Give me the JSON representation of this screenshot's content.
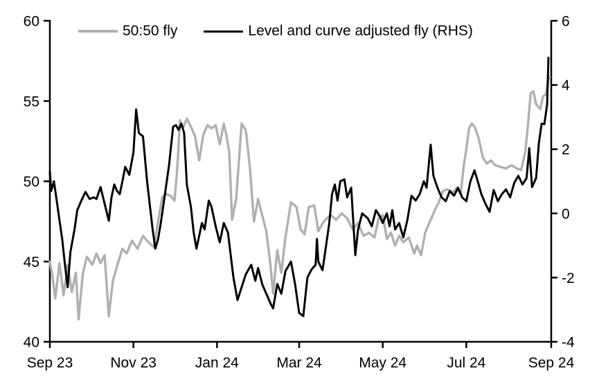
{
  "chart_data": {
    "type": "line",
    "title": "",
    "legend": {
      "position": "top",
      "items": [
        {
          "label": "50:50 fly",
          "color": "#b0b0b0"
        },
        {
          "label": "Level and curve adjusted fly (RHS)",
          "color": "#000000"
        }
      ]
    },
    "x_axis": {
      "tick_labels": [
        "Sep 23",
        "Nov 23",
        "Jan 24",
        "Mar 24",
        "May 24",
        "Jul 24",
        "Sep 24"
      ],
      "tick_positions_days": [
        0,
        61,
        122,
        182,
        243,
        304,
        366
      ],
      "range_days": [
        0,
        366
      ],
      "note": "x expressed as days since first tick (Sep 2023)"
    },
    "left_axis": {
      "ticks": [
        60,
        55,
        50,
        45,
        40
      ],
      "range": [
        40,
        60
      ],
      "applies_to": "50:50 fly"
    },
    "right_axis": {
      "ticks": [
        6,
        4,
        2,
        0,
        -2,
        -4
      ],
      "range": [
        -4,
        6
      ],
      "applies_to": "Level and curve adjusted fly (RHS)"
    },
    "grid": "off",
    "axis_color": "#000000",
    "series": [
      {
        "name": "50:50 fly",
        "axis": "left",
        "color": "#b0b0b0",
        "stroke_width": 3.4,
        "points": [
          [
            0,
            45.0
          ],
          [
            2,
            44.0
          ],
          [
            4,
            42.7
          ],
          [
            7,
            44.9
          ],
          [
            10,
            42.9
          ],
          [
            13,
            44.8
          ],
          [
            16,
            43.1
          ],
          [
            19,
            44.3
          ],
          [
            21,
            41.4
          ],
          [
            24,
            44.2
          ],
          [
            27,
            45.3
          ],
          [
            31,
            44.8
          ],
          [
            34,
            45.5
          ],
          [
            37,
            44.9
          ],
          [
            40,
            45.4
          ],
          [
            43,
            41.6
          ],
          [
            46,
            43.8
          ],
          [
            49,
            44.7
          ],
          [
            53,
            45.8
          ],
          [
            56,
            45.5
          ],
          [
            60,
            46.3
          ],
          [
            64,
            45.8
          ],
          [
            68,
            46.6
          ],
          [
            72,
            46.2
          ],
          [
            76,
            45.9
          ],
          [
            79,
            47.5
          ],
          [
            82,
            49.0
          ],
          [
            85,
            49.2
          ],
          [
            88,
            49.1
          ],
          [
            91,
            48.8
          ],
          [
            93,
            50.8
          ],
          [
            95,
            53.8
          ],
          [
            97,
            53.3
          ],
          [
            100,
            53.9
          ],
          [
            103,
            53.4
          ],
          [
            106,
            52.8
          ],
          [
            109,
            51.3
          ],
          [
            112,
            52.9
          ],
          [
            115,
            53.5
          ],
          [
            118,
            53.3
          ],
          [
            121,
            53.5
          ],
          [
            124,
            52.3
          ],
          [
            127,
            53.6
          ],
          [
            129,
            52.8
          ],
          [
            131,
            51.8
          ],
          [
            133,
            47.6
          ],
          [
            136,
            48.9
          ],
          [
            140,
            53.6
          ],
          [
            143,
            53.2
          ],
          [
            146,
            50.9
          ],
          [
            149,
            47.5
          ],
          [
            152,
            48.9
          ],
          [
            155,
            47.9
          ],
          [
            158,
            46.9
          ],
          [
            161,
            44.8
          ],
          [
            163,
            43.0
          ],
          [
            166,
            45.7
          ],
          [
            169,
            44.3
          ],
          [
            172,
            46.5
          ],
          [
            176,
            48.7
          ],
          [
            180,
            48.4
          ],
          [
            183,
            47.0
          ],
          [
            186,
            46.7
          ],
          [
            189,
            48.4
          ],
          [
            193,
            48.5
          ],
          [
            196,
            46.9
          ],
          [
            200,
            47.5
          ],
          [
            205,
            47.9
          ],
          [
            209,
            47.6
          ],
          [
            213,
            48.0
          ],
          [
            217,
            47.7
          ],
          [
            221,
            47.0
          ],
          [
            225,
            47.4
          ],
          [
            229,
            46.6
          ],
          [
            233,
            46.8
          ],
          [
            237,
            46.5
          ],
          [
            240,
            47.7
          ],
          [
            243,
            47.9
          ],
          [
            246,
            46.4
          ],
          [
            249,
            46.8
          ],
          [
            252,
            46.0
          ],
          [
            255,
            46.6
          ],
          [
            258,
            46.2
          ],
          [
            262,
            46.5
          ],
          [
            266,
            45.5
          ],
          [
            268,
            46.0
          ],
          [
            271,
            45.4
          ],
          [
            274,
            46.8
          ],
          [
            277,
            47.4
          ],
          [
            281,
            48.2
          ],
          [
            284,
            48.7
          ],
          [
            287,
            49.4
          ],
          [
            290,
            49.5
          ],
          [
            294,
            49.3
          ],
          [
            297,
            49.6
          ],
          [
            300,
            49.2
          ],
          [
            302,
            50.9
          ],
          [
            304,
            52.0
          ],
          [
            306,
            53.3
          ],
          [
            308,
            53.6
          ],
          [
            310,
            53.4
          ],
          [
            313,
            52.7
          ],
          [
            316,
            51.5
          ],
          [
            319,
            51.1
          ],
          [
            322,
            51.3
          ],
          [
            325,
            51.0
          ],
          [
            329,
            50.9
          ],
          [
            333,
            50.8
          ],
          [
            337,
            51.0
          ],
          [
            341,
            50.8
          ],
          [
            344,
            50.7
          ],
          [
            347,
            51.8
          ],
          [
            349,
            53.5
          ],
          [
            351,
            55.5
          ],
          [
            353,
            55.6
          ],
          [
            355,
            54.8
          ],
          [
            358,
            54.5
          ],
          [
            360,
            55.3
          ],
          [
            362,
            55.4
          ],
          [
            364,
            56.4
          ],
          [
            365,
            56.5
          ]
        ]
      },
      {
        "name": "Level and curve adjusted fly (RHS)",
        "axis": "right",
        "color": "#000000",
        "stroke_width": 3.0,
        "points": [
          [
            0,
            1.3
          ],
          [
            1,
            0.7
          ],
          [
            3,
            1.0
          ],
          [
            5,
            0.4
          ],
          [
            7,
            -0.2
          ],
          [
            9,
            -0.8
          ],
          [
            11,
            -1.6
          ],
          [
            13,
            -2.3
          ],
          [
            15,
            -1.2
          ],
          [
            18,
            -0.5
          ],
          [
            20,
            0.1
          ],
          [
            23,
            0.4
          ],
          [
            26,
            0.67
          ],
          [
            29,
            0.45
          ],
          [
            32,
            0.5
          ],
          [
            34,
            0.45
          ],
          [
            37,
            0.82
          ],
          [
            40,
            0.3
          ],
          [
            43,
            -0.23
          ],
          [
            45,
            0.5
          ],
          [
            47,
            0.9
          ],
          [
            49,
            0.7
          ],
          [
            51,
            0.6
          ],
          [
            53,
            1.0
          ],
          [
            55,
            1.45
          ],
          [
            58,
            1.2
          ],
          [
            61,
            1.9
          ],
          [
            63,
            3.24
          ],
          [
            65,
            2.5
          ],
          [
            68,
            2.4
          ],
          [
            71,
            1.0
          ],
          [
            75,
            -0.5
          ],
          [
            77,
            -1.1
          ],
          [
            79,
            -0.8
          ],
          [
            81,
            -0.3
          ],
          [
            83,
            0.3
          ],
          [
            87,
            1.5
          ],
          [
            90,
            2.7
          ],
          [
            92,
            2.75
          ],
          [
            94,
            2.6
          ],
          [
            96,
            2.8
          ],
          [
            98,
            2.5
          ],
          [
            100,
            0.9
          ],
          [
            103,
            0.2
          ],
          [
            105,
            -0.6
          ],
          [
            107,
            -1.1
          ],
          [
            109,
            -0.7
          ],
          [
            111,
            -0.3
          ],
          [
            113,
            -0.5
          ],
          [
            116,
            0.4
          ],
          [
            118,
            0.2
          ],
          [
            121,
            -0.4
          ],
          [
            124,
            -0.9
          ],
          [
            127,
            -0.3
          ],
          [
            130,
            -0.6
          ],
          [
            134,
            -2.0
          ],
          [
            137,
            -2.7
          ],
          [
            140,
            -2.3
          ],
          [
            143,
            -1.9
          ],
          [
            147,
            -1.6
          ],
          [
            150,
            -2.1
          ],
          [
            152,
            -1.7
          ],
          [
            155,
            -2.2
          ],
          [
            158,
            -2.5
          ],
          [
            161,
            -2.8
          ],
          [
            163,
            -2.96
          ],
          [
            166,
            -2.2
          ],
          [
            169,
            -2.5
          ],
          [
            172,
            -1.8
          ],
          [
            176,
            -1.5
          ],
          [
            179,
            -2.2
          ],
          [
            182,
            -3.1
          ],
          [
            185,
            -3.2
          ],
          [
            188,
            -2.0
          ],
          [
            191,
            -1.75
          ],
          [
            194,
            -1.6
          ],
          [
            195,
            -0.8
          ],
          [
            196,
            -1.5
          ],
          [
            199,
            -1.77
          ],
          [
            201,
            -1.2
          ],
          [
            204,
            -0.3
          ],
          [
            206,
            0.6
          ],
          [
            208,
            0.9
          ],
          [
            210,
            0.4
          ],
          [
            212,
            1.0
          ],
          [
            215,
            1.06
          ],
          [
            217,
            0.5
          ],
          [
            220,
            0.8
          ],
          [
            223,
            -1.3
          ],
          [
            225,
            -0.5
          ],
          [
            228,
            0.0
          ],
          [
            232,
            -0.15
          ],
          [
            235,
            -0.4
          ],
          [
            238,
            0.1
          ],
          [
            241,
            -0.1
          ],
          [
            243,
            -0.3
          ],
          [
            246,
            0.0
          ],
          [
            248,
            -0.4
          ],
          [
            250,
            0.1
          ],
          [
            252,
            -0.5
          ],
          [
            255,
            -0.3
          ],
          [
            258,
            -0.75
          ],
          [
            261,
            -0.2
          ],
          [
            264,
            0.55
          ],
          [
            267,
            0.4
          ],
          [
            270,
            0.6
          ],
          [
            273,
            1.0
          ],
          [
            275,
            0.8
          ],
          [
            278,
            2.14
          ],
          [
            280,
            1.17
          ],
          [
            283,
            0.8
          ],
          [
            286,
            0.5
          ],
          [
            289,
            0.38
          ],
          [
            292,
            0.7
          ],
          [
            295,
            0.55
          ],
          [
            298,
            0.8
          ],
          [
            301,
            0.5
          ],
          [
            304,
            0.38
          ],
          [
            307,
            1.0
          ],
          [
            310,
            1.34
          ],
          [
            313,
            0.9
          ],
          [
            315,
            0.6
          ],
          [
            318,
            0.3
          ],
          [
            321,
            0.05
          ],
          [
            324,
            0.73
          ],
          [
            327,
            0.38
          ],
          [
            330,
            0.6
          ],
          [
            333,
            0.75
          ],
          [
            336,
            0.5
          ],
          [
            339,
            0.95
          ],
          [
            342,
            1.17
          ],
          [
            345,
            0.9
          ],
          [
            348,
            1.1
          ],
          [
            350,
            2.03
          ],
          [
            352,
            0.82
          ],
          [
            355,
            1.1
          ],
          [
            357,
            2.2
          ],
          [
            359,
            2.8
          ],
          [
            361,
            2.78
          ],
          [
            363,
            3.4
          ],
          [
            364,
            4.85
          ]
        ]
      }
    ]
  }
}
